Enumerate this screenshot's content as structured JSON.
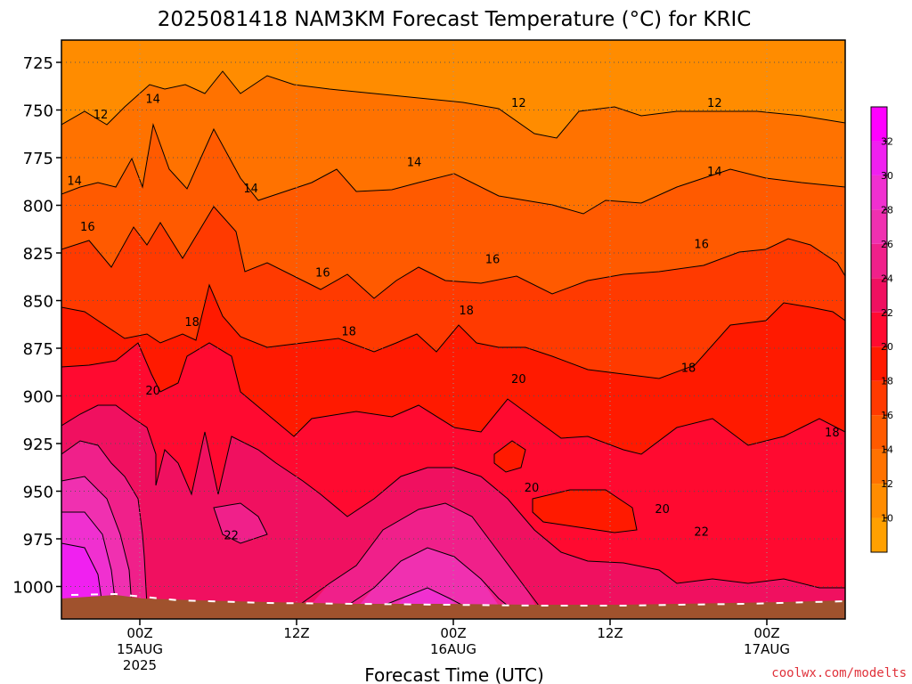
{
  "chart_data": {
    "type": "heatmap",
    "title": "2025081418 NAM3KM Forecast Temperature (°C) for KRIC",
    "xlabel": "Forecast Time (UTC)",
    "ylabel": "",
    "y_axis": {
      "ticks": [
        725,
        750,
        775,
        800,
        825,
        850,
        875,
        900,
        925,
        950,
        975,
        1000
      ],
      "units": "hPa",
      "inverted": true
    },
    "x_axis": {
      "ticks": [
        {
          "hours": 6,
          "label": [
            "00Z",
            "15AUG",
            "2025"
          ]
        },
        {
          "hours": 18,
          "label": [
            "12Z"
          ]
        },
        {
          "hours": 30,
          "label": [
            "00Z",
            "16AUG"
          ]
        },
        {
          "hours": 42,
          "label": [
            "12Z"
          ]
        },
        {
          "hours": 54,
          "label": [
            "00Z",
            "17AUG"
          ]
        }
      ],
      "range_hours": [
        0,
        60
      ]
    },
    "colorbar": {
      "ticks": [
        10,
        12,
        14,
        16,
        18,
        20,
        22,
        24,
        26,
        28,
        30,
        32
      ],
      "levels": [
        8,
        10,
        12,
        14,
        16,
        18,
        20,
        22,
        24,
        26,
        28,
        30,
        32,
        34
      ],
      "colors": [
        "#ffa000",
        "#ff8c00",
        "#ff7200",
        "#ff5a00",
        "#ff3a00",
        "#ff1a00",
        "#ff0a30",
        "#f01060",
        "#f0208a",
        "#f030b0",
        "#f030d0",
        "#f020f0",
        "#ff00ff"
      ]
    },
    "grid": true,
    "contour_labels": [
      {
        "text": "12",
        "t": 3.0,
        "p": 752
      },
      {
        "text": "12",
        "t": 35.0,
        "p": 746
      },
      {
        "text": "12",
        "t": 50.0,
        "p": 746
      },
      {
        "text": "14",
        "t": 7.0,
        "p": 744
      },
      {
        "text": "14",
        "t": 1.0,
        "p": 787
      },
      {
        "text": "14",
        "t": 14.5,
        "p": 791
      },
      {
        "text": "14",
        "t": 27.0,
        "p": 777
      },
      {
        "text": "14",
        "t": 50.0,
        "p": 782
      },
      {
        "text": "16",
        "t": 2.0,
        "p": 811
      },
      {
        "text": "16",
        "t": 20.0,
        "p": 835
      },
      {
        "text": "16",
        "t": 33.0,
        "p": 828
      },
      {
        "text": "16",
        "t": 49.0,
        "p": 820
      },
      {
        "text": "18",
        "t": 10.0,
        "p": 861
      },
      {
        "text": "18",
        "t": 22.0,
        "p": 866
      },
      {
        "text": "18",
        "t": 31.0,
        "p": 855
      },
      {
        "text": "18",
        "t": 48.0,
        "p": 885
      },
      {
        "text": "18",
        "t": 59.0,
        "p": 919
      },
      {
        "text": "20",
        "t": 7.0,
        "p": 897
      },
      {
        "text": "20",
        "t": 35.0,
        "p": 891
      },
      {
        "text": "20",
        "t": 36.0,
        "p": 948
      },
      {
        "text": "20",
        "t": 46.0,
        "p": 959
      },
      {
        "text": "22",
        "t": 13.0,
        "p": 973
      },
      {
        "text": "22",
        "t": 49.0,
        "p": 971
      }
    ],
    "surface_pressure_hPa": 1008
  },
  "credit": "coolwx.com/modelts"
}
